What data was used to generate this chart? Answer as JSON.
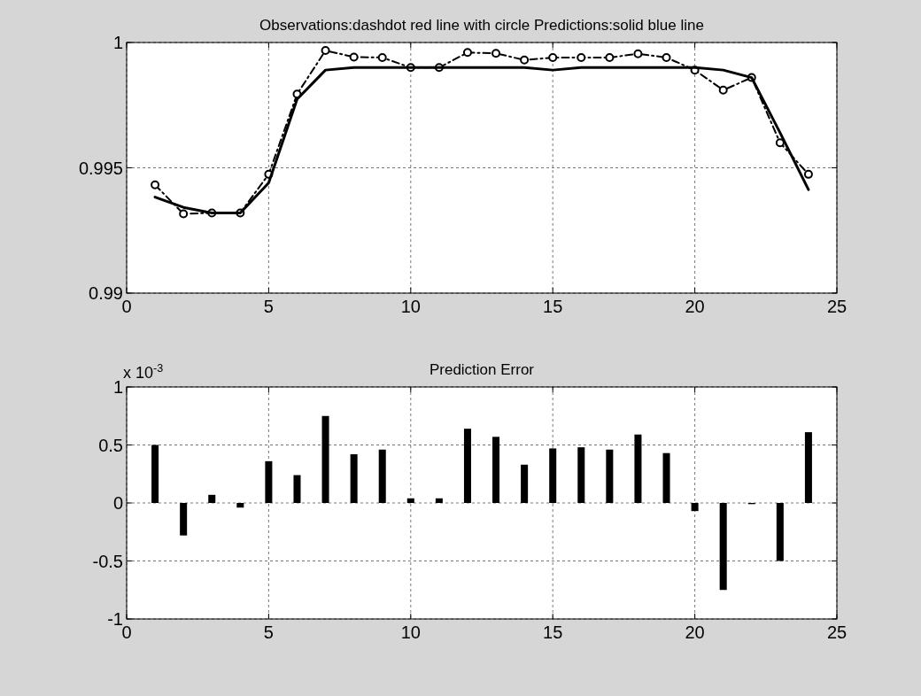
{
  "chart_data": [
    {
      "type": "line",
      "title": "Observations:dashdot red line with circle   Predictions:solid blue line",
      "x": [
        1,
        2,
        3,
        4,
        5,
        6,
        7,
        8,
        9,
        10,
        11,
        12,
        13,
        14,
        15,
        16,
        17,
        18,
        19,
        20,
        21,
        22,
        23,
        24
      ],
      "series": [
        {
          "color": "#000000",
          "marker": "circle",
          "line_style": "dashed",
          "values": [
            0.99432,
            0.99316,
            0.9932,
            0.9932,
            0.99474,
            0.99794,
            0.99968,
            0.99942,
            0.9994,
            0.999,
            0.999,
            0.9996,
            0.99957,
            0.9993,
            0.9994,
            0.9994,
            0.9994,
            0.99955,
            0.9994,
            0.9989,
            0.9981,
            0.9986,
            0.996,
            0.99474
          ]
        },
        {
          "color": "#000000",
          "marker": "none",
          "line_style": "solid",
          "values": [
            0.99383,
            0.99342,
            0.9932,
            0.9932,
            0.9944,
            0.99774,
            0.9989,
            0.999,
            0.999,
            0.999,
            0.999,
            0.999,
            0.999,
            0.999,
            0.9989,
            0.999,
            0.999,
            0.999,
            0.999,
            0.999,
            0.9989,
            0.9986,
            0.9964,
            0.99413
          ]
        }
      ],
      "xlim": [
        0,
        25
      ],
      "xticks": [
        0,
        5,
        10,
        15,
        20,
        25
      ],
      "ylim": [
        0.99,
        1
      ],
      "yticks": [
        0.99,
        0.995,
        1
      ],
      "grid": true
    },
    {
      "type": "bar",
      "title": "Prediction Error",
      "annotations": [
        "x 10$^{-3}$"
      ],
      "x": [
        1,
        2,
        3,
        4,
        5,
        6,
        7,
        8,
        9,
        10,
        11,
        12,
        13,
        14,
        15,
        16,
        17,
        18,
        19,
        20,
        21,
        22,
        23,
        24
      ],
      "values": [
        0.5,
        -0.28,
        0.07,
        -0.04,
        0.36,
        0.24,
        0.75,
        0.42,
        0.46,
        0.04,
        0.04,
        0.64,
        0.57,
        0.33,
        0.47,
        0.48,
        0.46,
        0.59,
        0.43,
        -0.07,
        -0.75,
        -0.01,
        -0.5,
        0.61
      ],
      "color": "#000000",
      "xlim": [
        0,
        25
      ],
      "xticks": [
        0,
        5,
        10,
        15,
        20,
        25
      ],
      "ylim": [
        -1,
        1
      ],
      "yticks": [
        -1,
        -0.5,
        0,
        0.5,
        1
      ],
      "grid": true
    }
  ]
}
